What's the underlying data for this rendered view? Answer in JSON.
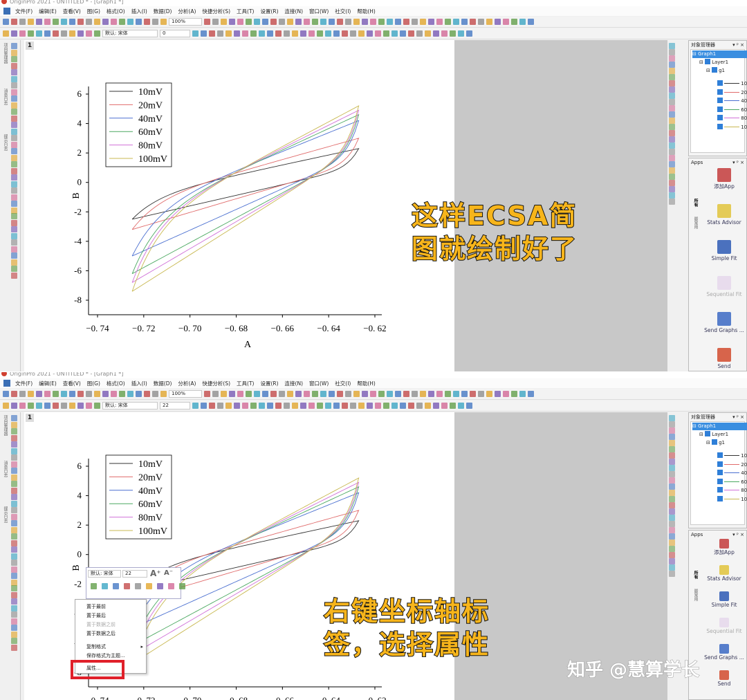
{
  "window_title": "OriginPro 2021 - UNTITLED * - [Graph1 *]",
  "menu": [
    "文件(F)",
    "编辑(E)",
    "查看(V)",
    "图(G)",
    "格式(O)",
    "插入(I)",
    "数据(D)",
    "分析(A)",
    "快捷分析(S)",
    "工具(T)",
    "设置(R)",
    "连接(N)",
    "窗口(W)",
    "社交(I)",
    "帮助(H)"
  ],
  "toolbar": {
    "zoom": "100%",
    "font": "默认: 宋体"
  },
  "panels": [
    {
      "font_size": "0",
      "overlay": "这样ECSA简\n图就绘制好了"
    },
    {
      "font_size": "22",
      "overlay": "右键坐标轴标\n签，选择属性"
    }
  ],
  "page_number": "1",
  "left_tabs": [
    "项目管理器",
    "消息日志",
    "提示日志"
  ],
  "object_manager": {
    "title": "对象管理器",
    "graph": "Graph1",
    "layer": "Layer1",
    "group": "g1",
    "items": [
      "10",
      "20",
      "40",
      "60",
      "80",
      "10"
    ]
  },
  "apps": {
    "title": "Apps",
    "tabs": [
      "所有",
      "最常用"
    ],
    "items": [
      "添加App",
      "Stats Advisor",
      "Simple Fit",
      "Sequential Fit",
      "Send Graphs ...",
      "Send"
    ]
  },
  "context_menu": {
    "mini_font": "默认: 宋体",
    "mini_size": "22",
    "items": [
      {
        "label": "置于最前",
        "disabled": false
      },
      {
        "label": "置于最后",
        "disabled": false
      },
      {
        "label": "置于数据之前",
        "disabled": true
      },
      {
        "label": "置于数据之后",
        "disabled": false
      },
      {
        "label": "复制格式",
        "disabled": false,
        "submenu": true
      },
      {
        "label": "保存格式为主题...",
        "disabled": false
      },
      {
        "label": "属性...",
        "disabled": false,
        "highlighted": true
      }
    ],
    "highlight_color": "#e0202a"
  },
  "watermark": "知乎 @慧算学长",
  "chart_data": {
    "type": "line",
    "xlabel": "A",
    "ylabel": "B",
    "xlim": [
      -0.74,
      -0.62
    ],
    "ylim": [
      -8,
      6.5
    ],
    "xticks": [
      "-0.74",
      "-0.72",
      "-0.70",
      "-0.68",
      "-0.66",
      "-0.64",
      "-0.62"
    ],
    "xtick_labels": [
      "−0. 74",
      "−0. 72",
      "−0. 70",
      "−0. 68",
      "−0. 66",
      "−0. 64",
      "−0. 62"
    ],
    "yticks": [
      "6",
      "4",
      "2",
      "0",
      "-2",
      "-4",
      "-6",
      "-8"
    ],
    "legend": "top-left",
    "grid": false,
    "x_range": [
      -0.725,
      -0.627
    ],
    "series": [
      {
        "name": "10mV",
        "color": "#333333",
        "y_at_min_x": -2.5,
        "y_at_max_x": 2.3
      },
      {
        "name": "20mV",
        "color": "#e06a6a",
        "y_at_min_x": -3.2,
        "y_at_max_x": 3.0
      },
      {
        "name": "40mV",
        "color": "#4a6fd0",
        "y_at_min_x": -5.0,
        "y_at_max_x": 4.2
      },
      {
        "name": "60mV",
        "color": "#4aa860",
        "y_at_min_x": -6.2,
        "y_at_max_x": 4.6
      },
      {
        "name": "80mV",
        "color": "#d070d8",
        "y_at_min_x": -6.8,
        "y_at_max_x": 4.9
      },
      {
        "name": "100mV",
        "color": "#c8b850",
        "y_at_min_x": -7.4,
        "y_at_max_x": 5.2
      }
    ]
  }
}
